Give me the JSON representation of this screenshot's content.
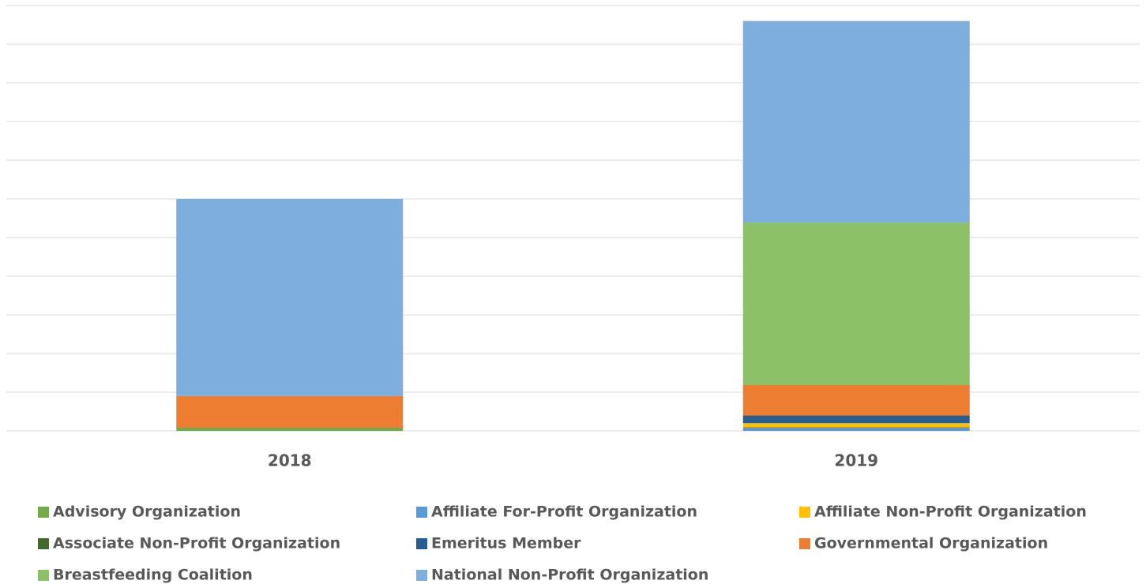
{
  "chart_data": {
    "type": "stacked_bar",
    "categories": [
      "2018",
      "2019"
    ],
    "series": [
      {
        "name": "Advisory Organization",
        "color": "#70ad47",
        "values": [
          1,
          0
        ]
      },
      {
        "name": "Affiliate For-Profit Organization",
        "color": "#5b9bd5",
        "values": [
          0,
          1
        ]
      },
      {
        "name": "Affiliate Non-Profit Organization",
        "color": "#ffc000",
        "values": [
          0,
          1
        ]
      },
      {
        "name": "Associate Non-Profit Organization",
        "color": "#43682b",
        "values": [
          0,
          0
        ]
      },
      {
        "name": "Emeritus Member",
        "color": "#255e91",
        "values": [
          0,
          2
        ]
      },
      {
        "name": "Governmental Organization",
        "color": "#ed7d31",
        "values": [
          8,
          8
        ]
      },
      {
        "name": "Breastfeeding Coalition",
        "color": "#8cc168",
        "values": [
          0,
          42
        ]
      },
      {
        "name": "National Non-Profit Organization",
        "color": "#7daedd",
        "values": [
          51,
          52
        ]
      }
    ],
    "ylim": [
      0,
      110
    ],
    "yticks": [
      0,
      10,
      20,
      30,
      40,
      50,
      60,
      70,
      80,
      90,
      100,
      110
    ],
    "grid": true,
    "legend": "bottom"
  }
}
